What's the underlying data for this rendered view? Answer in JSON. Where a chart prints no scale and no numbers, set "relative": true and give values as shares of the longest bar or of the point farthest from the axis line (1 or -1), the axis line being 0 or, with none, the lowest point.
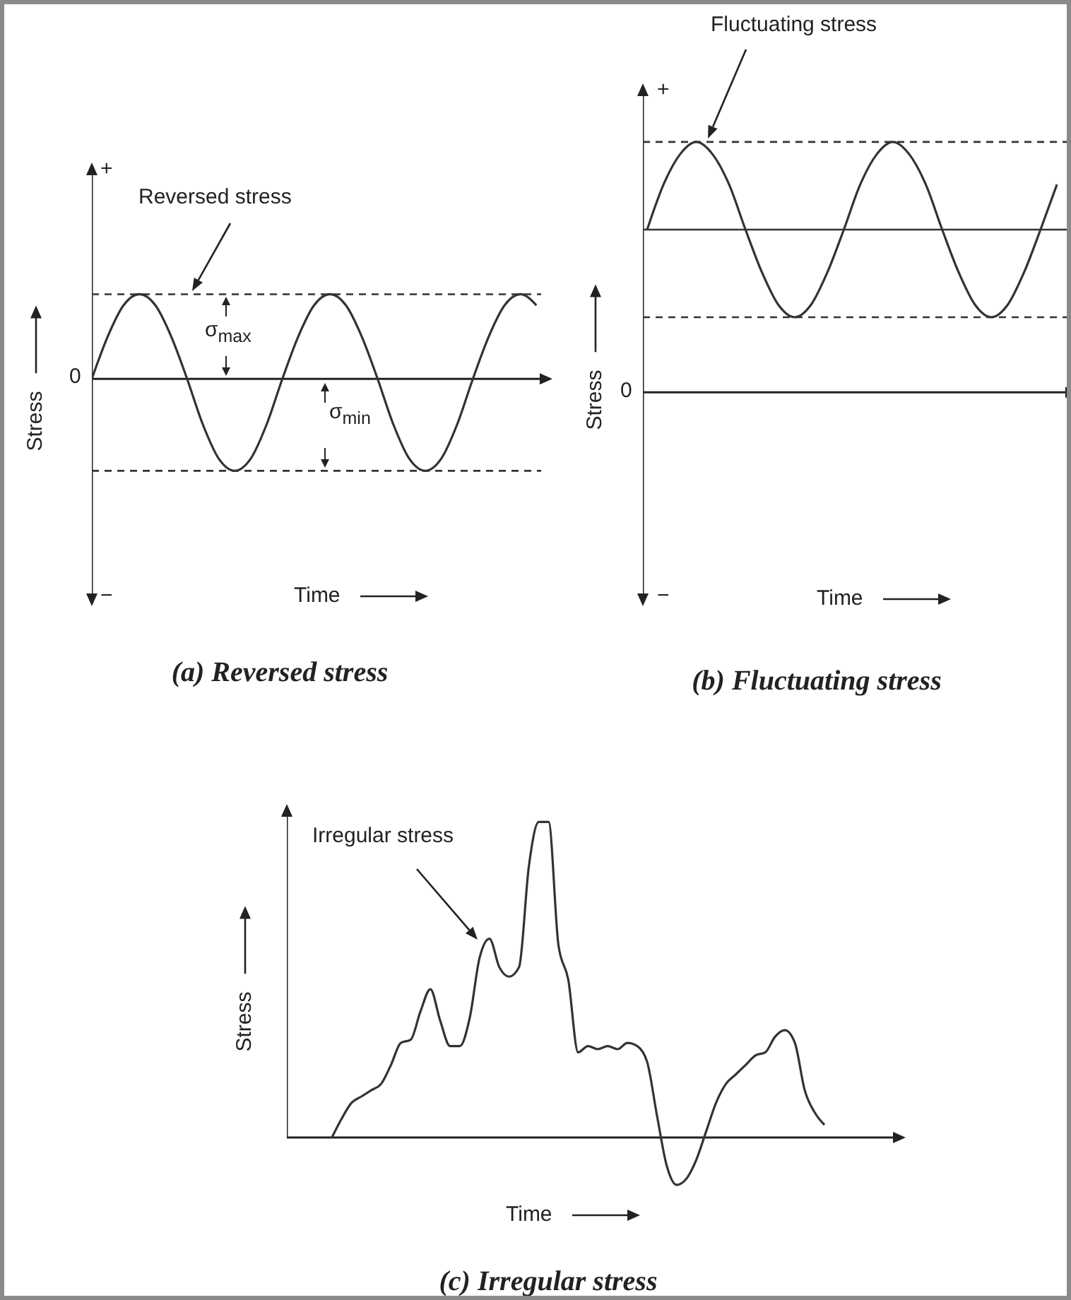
{
  "chart_data": [
    {
      "type": "line",
      "title": "(a) Reversed stress",
      "xlabel": "Time",
      "ylabel": "Stress",
      "relative": true,
      "categories": [
        null,
        null,
        null,
        null,
        null,
        null,
        null,
        null,
        null,
        null,
        null,
        null,
        null,
        null,
        null,
        null,
        null,
        null,
        null,
        null,
        null,
        null,
        null,
        null,
        null,
        null,
        null,
        null,
        null
      ],
      "series": [
        {
          "color": "#333333",
          "values": [
            0,
            0.46,
            0.8,
            0.92,
            0.8,
            0.46,
            0,
            -0.5,
            -0.87,
            -1,
            -0.87,
            -0.5,
            0,
            0.46,
            0.8,
            0.92,
            0.8,
            0.46,
            0,
            -0.5,
            -0.87,
            -1,
            -0.87,
            -0.5,
            0,
            0.46,
            0.8,
            0.92,
            0.8
          ]
        }
      ],
      "ref_lines": [
        {
          "axis": "y",
          "value": 0.92,
          "line_style": "dashed"
        },
        {
          "axis": "y",
          "value": -1,
          "line_style": "dashed"
        }
      ],
      "annotations": [
        "Reversed stress",
        "σ$_{max}$",
        "σ$_{min}$",
        "0",
        "+",
        "−"
      ]
    },
    {
      "type": "line",
      "title": "(b) Fluctuating stress",
      "xlabel": "Time",
      "ylabel": "Stress",
      "relative": true,
      "categories": [
        null,
        null,
        null,
        null,
        null,
        null,
        null,
        null,
        null,
        null,
        null,
        null,
        null,
        null,
        null,
        null,
        null,
        null,
        null,
        null,
        null,
        null,
        null,
        null,
        null,
        null
      ],
      "series": [
        {
          "color": "#333333",
          "values": [
            0.65,
            0.83,
            0.95,
            1,
            0.95,
            0.83,
            0.65,
            0.48,
            0.35,
            0.3,
            0.35,
            0.48,
            0.65,
            0.83,
            0.95,
            1,
            0.95,
            0.83,
            0.65,
            0.48,
            0.35,
            0.3,
            0.35,
            0.48,
            0.65,
            0.83
          ]
        }
      ],
      "ref_lines": [
        {
          "axis": "y",
          "value": 1,
          "line_style": "dashed"
        },
        {
          "axis": "y",
          "value": 0.3,
          "line_style": "dashed"
        },
        {
          "axis": "y",
          "value": 0.65,
          "line_style": "solid"
        }
      ],
      "annotations": [
        "Fluctuating stress",
        "0",
        "+",
        "−"
      ]
    },
    {
      "type": "line",
      "title": "(c) Irregular stress",
      "xlabel": "Time",
      "ylabel": "Stress",
      "relative": true,
      "categories": [
        null,
        null,
        null,
        null,
        null,
        null,
        null,
        null,
        null,
        null,
        null,
        null,
        null,
        null,
        null,
        null,
        null,
        null,
        null,
        null,
        null,
        null,
        null,
        null,
        null,
        null,
        null,
        null,
        null,
        null,
        null,
        null,
        null,
        null,
        null,
        null,
        null,
        null,
        null,
        null,
        null,
        null,
        null,
        null,
        null,
        null,
        null,
        null,
        null,
        null,
        null
      ],
      "series": [
        {
          "color": "#333333",
          "values": [
            0,
            0.06,
            0.11,
            0.13,
            0.15,
            0.17,
            0.23,
            0.3,
            0.31,
            0.4,
            0.47,
            0.37,
            0.29,
            0.29,
            0.38,
            0.57,
            0.63,
            0.54,
            0.51,
            0.54,
            0.86,
            1,
            1,
            0.61,
            0.5,
            0.27,
            0.29,
            0.28,
            0.29,
            0.28,
            0.3,
            0.29,
            0.24,
            0.07,
            -0.09,
            -0.15,
            -0.13,
            -0.07,
            0.02,
            0.11,
            0.17,
            0.2,
            0.23,
            0.26,
            0.27,
            0.32,
            0.34,
            0.3,
            0.15,
            0.08,
            0.04
          ]
        }
      ],
      "annotations": [
        "Irregular stress"
      ]
    }
  ]
}
